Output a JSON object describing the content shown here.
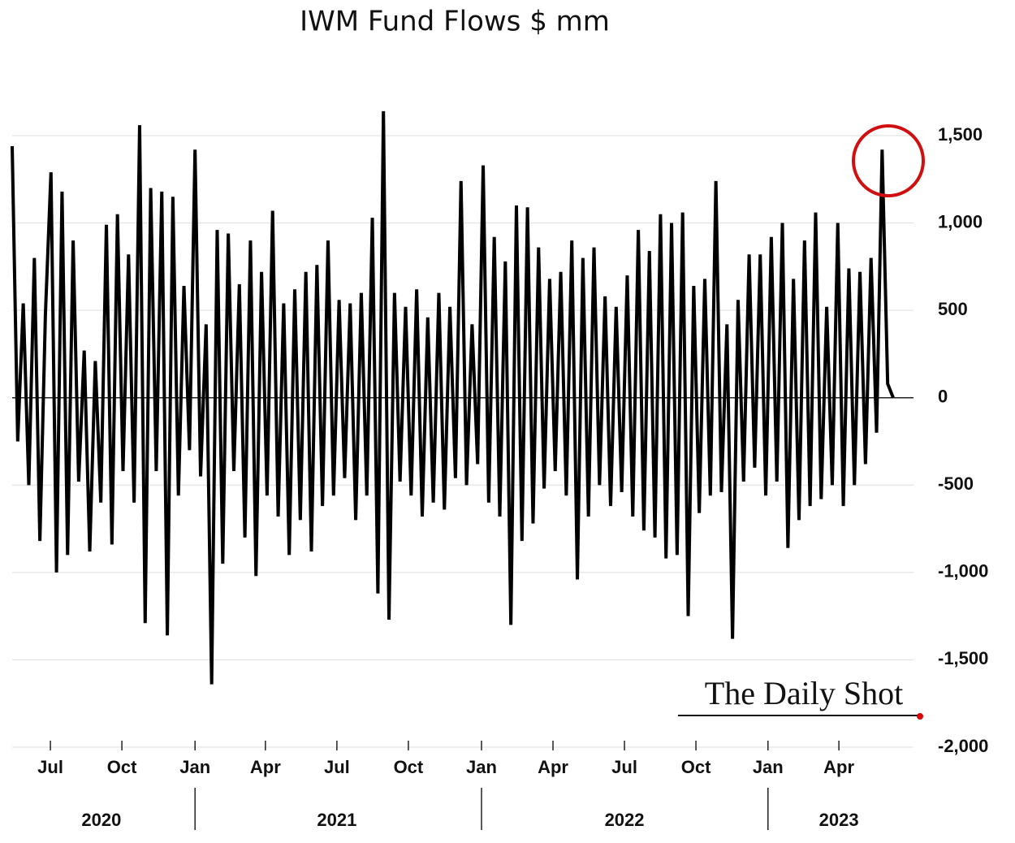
{
  "chart_data": {
    "type": "line",
    "title": "IWM Fund Flows $ mm",
    "watermark": "The Daily Shot",
    "color": "#000000",
    "grid": true,
    "values": [
      1440,
      -250,
      540,
      -500,
      800,
      -820,
      480,
      1290,
      -1000,
      1180,
      -900,
      900,
      -480,
      270,
      -880,
      210,
      -600,
      990,
      -840,
      1050,
      -420,
      820,
      -600,
      1560,
      -1290,
      1200,
      -420,
      1180,
      -1360,
      1150,
      -560,
      640,
      -300,
      1420,
      -450,
      420,
      -1640,
      960,
      -950,
      940,
      -420,
      650,
      -800,
      900,
      -1020,
      720,
      -560,
      1070,
      -680,
      540,
      -900,
      620,
      -700,
      720,
      -880,
      760,
      -620,
      900,
      -560,
      560,
      -460,
      540,
      -700,
      600,
      -560,
      1030,
      -1120,
      1640,
      -1270,
      600,
      -480,
      520,
      -560,
      620,
      -680,
      460,
      -600,
      600,
      -640,
      520,
      -460,
      1240,
      -500,
      420,
      -380,
      1330,
      -600,
      920,
      -680,
      780,
      -1300,
      1100,
      -820,
      1090,
      -720,
      860,
      -520,
      680,
      -420,
      720,
      -560,
      900,
      -1040,
      800,
      -680,
      860,
      -500,
      580,
      -620,
      520,
      -540,
      700,
      -680,
      960,
      -760,
      840,
      -800,
      1050,
      -920,
      1000,
      -900,
      1060,
      -1250,
      640,
      -660,
      680,
      -560,
      1240,
      -540,
      420,
      -1380,
      560,
      -480,
      820,
      -400,
      820,
      -560,
      920,
      -480,
      1000,
      -860,
      680,
      -700,
      900,
      -620,
      1060,
      -580,
      520,
      -500,
      1000,
      -620,
      740,
      -500,
      720,
      -380,
      800,
      -200,
      1420,
      80,
      0
    ],
    "xlim": [
      0,
      159
    ],
    "xticks": [
      {
        "value": 6.9,
        "label": "Jul"
      },
      {
        "value": 19.8,
        "label": "Oct"
      },
      {
        "value": 33.0,
        "label": "Jan"
      },
      {
        "value": 45.7,
        "label": "Apr"
      },
      {
        "value": 58.6,
        "label": "Jul"
      },
      {
        "value": 71.5,
        "label": "Oct"
      },
      {
        "value": 84.7,
        "label": "Jan"
      },
      {
        "value": 97.6,
        "label": "Apr"
      },
      {
        "value": 110.5,
        "label": "Jul"
      },
      {
        "value": 123.4,
        "label": "Oct"
      },
      {
        "value": 136.4,
        "label": "Jan"
      },
      {
        "value": 149.2,
        "label": "Apr"
      }
    ],
    "year_labels": [
      {
        "value": 16.1,
        "label": "2020"
      },
      {
        "value": 58.6,
        "label": "2021"
      },
      {
        "value": 110.5,
        "label": "2022"
      },
      {
        "value": 149.2,
        "label": "2023"
      }
    ],
    "year_bounds": [
      33.0,
      84.7,
      136.4
    ],
    "ylim": [
      -2000,
      1700
    ],
    "yticks": [
      {
        "value": 1500,
        "label": "1,500"
      },
      {
        "value": 1000,
        "label": "1,000"
      },
      500,
      0,
      -500,
      {
        "value": -1000,
        "label": "-1,000"
      },
      {
        "value": -1500,
        "label": "-1,500"
      },
      {
        "value": -2000,
        "label": "-2,000"
      }
    ]
  }
}
